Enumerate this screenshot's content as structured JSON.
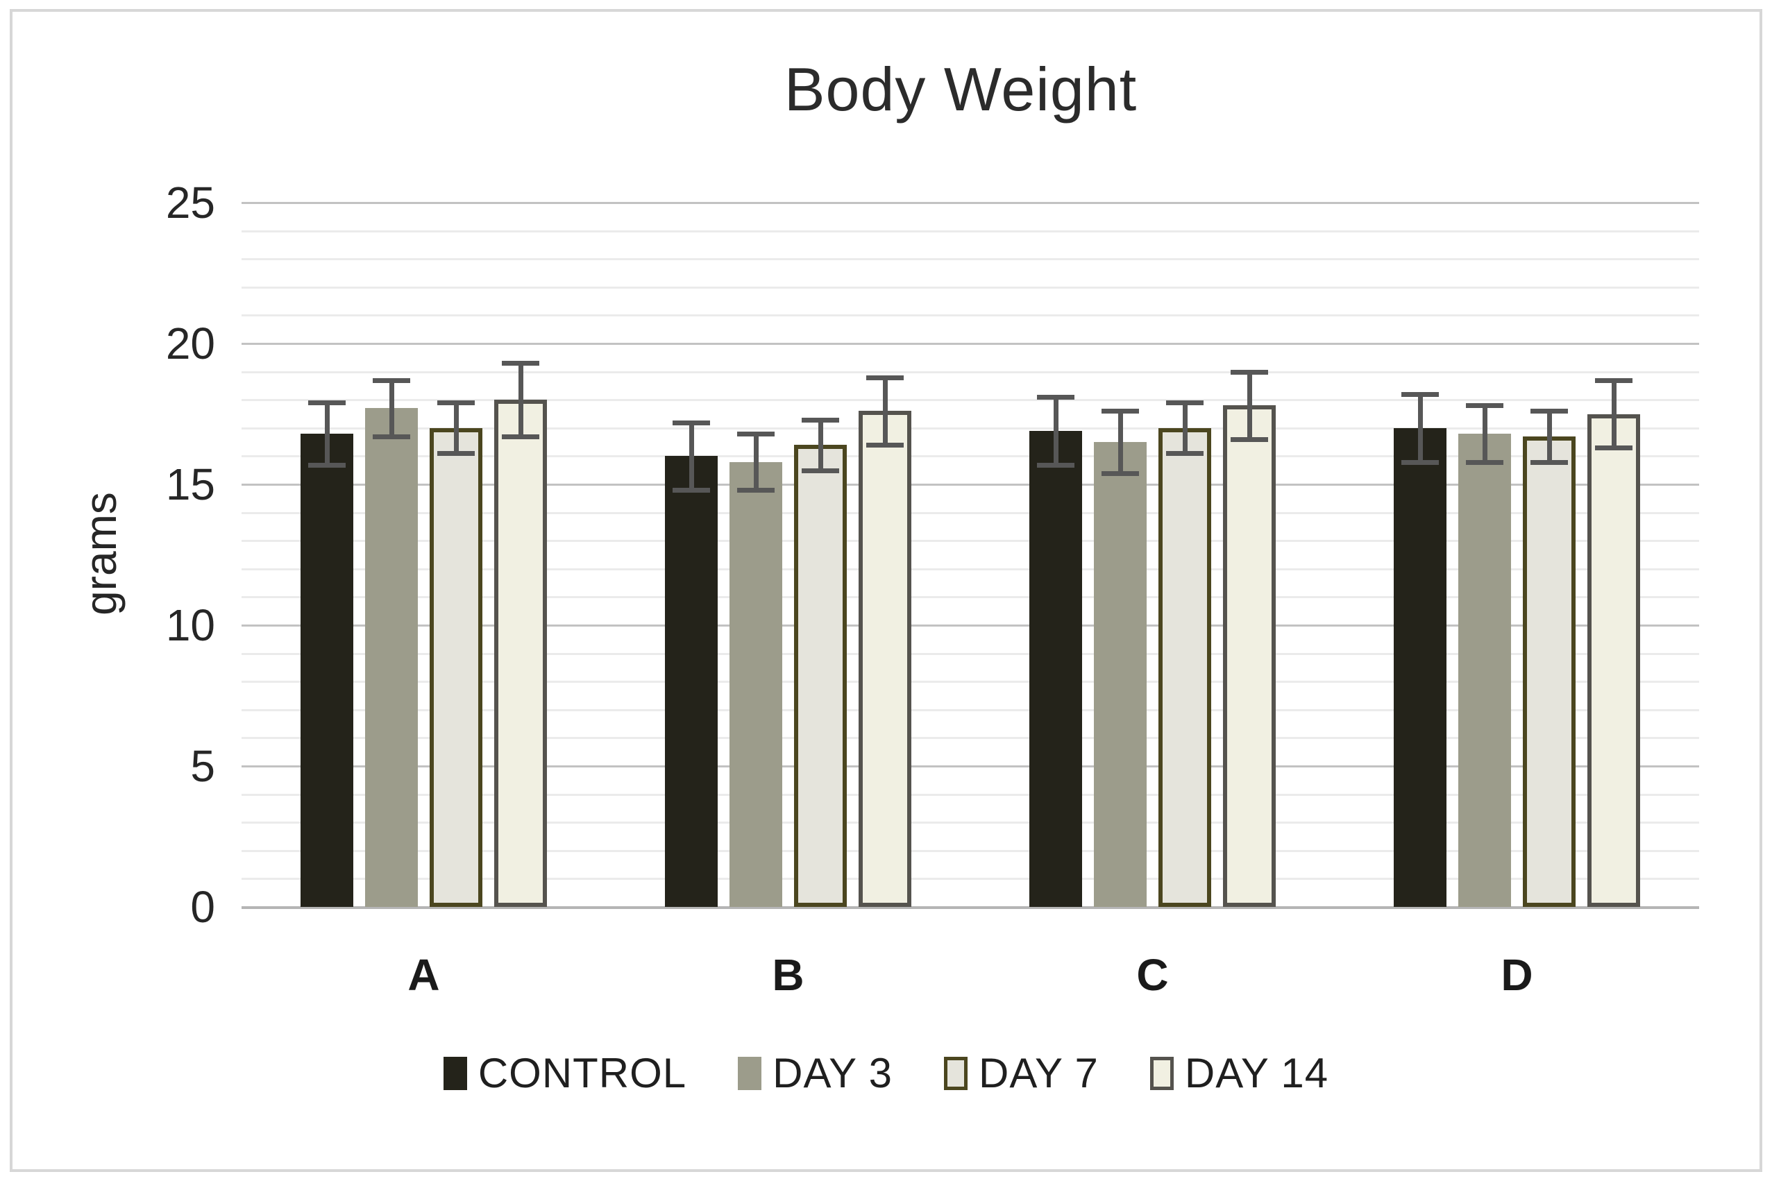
{
  "chart_data": {
    "type": "bar",
    "title": "Body Weight",
    "xlabel": "",
    "ylabel": "grams",
    "ylim": [
      0,
      25
    ],
    "yticks": [
      0,
      5,
      10,
      15,
      20,
      25
    ],
    "minor_grid_unit": 1,
    "major_grid_unit": 5,
    "grid": "on",
    "legend_position": "bottom",
    "categories": [
      "A",
      "B",
      "C",
      "D"
    ],
    "series": [
      {
        "name": "CONTROL",
        "values": [
          16.8,
          16.0,
          16.9,
          17.0
        ],
        "errors": [
          1.1,
          1.2,
          1.2,
          1.2
        ],
        "fill": "#24231a",
        "border": null
      },
      {
        "name": "DAY 3",
        "values": [
          17.7,
          15.8,
          16.5,
          16.8
        ],
        "errors": [
          1.0,
          1.0,
          1.1,
          1.0
        ],
        "fill": "#9c9c8b",
        "border": null
      },
      {
        "name": "DAY 7",
        "values": [
          17.0,
          16.4,
          17.0,
          16.7
        ],
        "errors": [
          0.9,
          0.9,
          0.9,
          0.9
        ],
        "fill": "#e5e4dc",
        "border": "#4b461f"
      },
      {
        "name": "DAY 14",
        "values": [
          18.0,
          17.6,
          17.8,
          17.5
        ],
        "errors": [
          1.3,
          1.2,
          1.2,
          1.2
        ],
        "fill": "#f1f0e2",
        "border": "#55534e"
      }
    ],
    "colors": {
      "error_bar": "#575757",
      "major_gridline": "#c2c2c2",
      "minor_gridline": "#ebebeb",
      "axis_line": "#b5b5b5",
      "text": "#262626"
    }
  }
}
